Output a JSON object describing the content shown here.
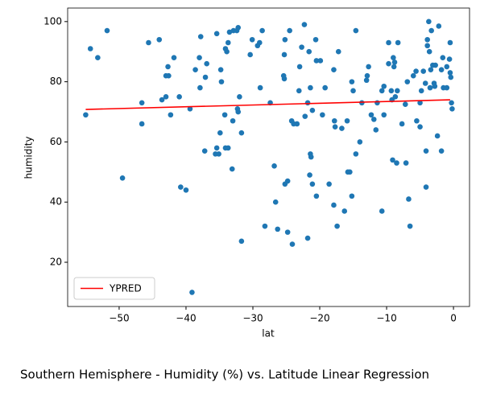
{
  "chart_data": {
    "type": "scatter",
    "title": "Southern Hemisphere - Humidity (%) vs. Latitude Linear Regression",
    "xlabel": "lat",
    "ylabel": "humidity",
    "color": "#1f77b4",
    "x": [
      -55,
      -54.3,
      -53.2,
      -51.8,
      -49.5,
      -46.6,
      -46.6,
      -45.6,
      -44,
      -43.6,
      -43,
      -42.6,
      -42.7,
      -43,
      -42.3,
      -41.8,
      -40.8,
      -40,
      -41,
      -39.1,
      -39.4,
      -38.6,
      -38,
      -37.8,
      -37.9,
      -37.1,
      -36.9,
      -37.2,
      -35.6,
      -35.4,
      -35.1,
      -35.4,
      -34.9,
      -34.7,
      -34.8,
      -34.1,
      -34.2,
      -34.1,
      -33.7,
      -33.5,
      -33.7,
      -33.9,
      -33.1,
      -33,
      -32.9,
      -32.4,
      -32.2,
      -32,
      -32.3,
      -32.2,
      -31.7,
      -31.7,
      -30.4,
      -30.1,
      -29.3,
      -29,
      -28.9,
      -28.6,
      -28.2,
      -27.4,
      -26.8,
      -26.6,
      -26.3,
      -25.4,
      -25.3,
      -25.2,
      -25.3,
      -25.2,
      -24.8,
      -24.8,
      -24.5,
      -24.2,
      -24.1,
      -23.9,
      -23.4,
      -23.1,
      -23,
      -22.7,
      -22.3,
      -22.2,
      -21.8,
      -21.8,
      -21.6,
      -21.4,
      -21.5,
      -21.4,
      -21.3,
      -21.1,
      -21.1,
      -20.6,
      -20.5,
      -20.5,
      -19.9,
      -19.6,
      -19.2,
      -18.6,
      -17.9,
      -17.9,
      -17.8,
      -17.7,
      -17.2,
      -17.4,
      -16.7,
      -16.3,
      -15.8,
      -15.9,
      -15.5,
      -15.2,
      -15.2,
      -15,
      -14.6,
      -14.6,
      -14,
      -13.7,
      -13,
      -12.9,
      -12.7,
      -12.3,
      -11.9,
      -11.6,
      -11.4,
      -10.7,
      -10.7,
      -10.4,
      -10.4,
      -9.7,
      -9.7,
      -9.3,
      -9.2,
      -9.1,
      -9,
      -8.9,
      -8.8,
      -8.7,
      -8.4,
      -8.3,
      -8.5,
      -7.7,
      -7.2,
      -7.1,
      -6.9,
      -6.7,
      -6.5,
      -6,
      -5.6,
      -5.5,
      -5,
      -5,
      -4.5,
      -4.1,
      -4.1,
      -3.9,
      -3.9,
      -3.7,
      -3.6,
      -3.5,
      -3.4,
      -3.1,
      -3.3,
      -2.9,
      -2.8,
      -2.7,
      -2.4,
      -2.2,
      -1.8,
      -1.8,
      -1.6,
      -1.5,
      -1,
      -0.6,
      -0.5,
      -0.4,
      -0.5,
      -0.3,
      -0.2,
      -1,
      -4.2,
      -4.8
    ],
    "values": [
      69,
      91,
      88,
      97,
      48,
      73,
      66,
      93,
      94,
      74,
      82,
      82,
      85,
      75,
      69,
      88,
      45,
      44,
      75,
      10,
      71,
      84,
      88,
      95,
      78,
      81.5,
      86,
      57,
      56,
      58,
      56,
      96,
      63,
      80,
      84,
      91,
      69,
      58,
      58,
      96.5,
      93,
      90,
      51,
      67,
      97,
      97,
      98,
      75,
      71,
      70,
      63,
      27,
      89,
      94,
      92,
      93,
      78,
      97,
      32,
      73,
      52,
      40,
      31,
      82,
      81,
      94,
      89,
      46,
      47,
      30,
      97,
      67,
      26,
      66,
      66,
      77,
      85,
      91.5,
      99,
      68.5,
      73,
      28,
      90,
      78,
      49,
      56,
      55,
      70.5,
      46,
      94,
      87,
      42,
      87,
      69,
      78,
      46,
      84,
      39,
      67,
      65,
      90,
      32,
      64.5,
      37,
      50,
      67,
      50,
      80,
      42,
      77,
      97,
      56,
      60,
      73,
      80.5,
      82,
      85,
      69,
      67.5,
      64,
      73,
      77,
      37,
      69,
      78.5,
      93,
      86,
      77,
      74,
      54,
      88,
      85,
      86.5,
      75,
      77,
      93,
      53,
      66,
      72.5,
      53,
      80,
      41,
      32,
      82,
      83.5,
      67,
      73,
      65,
      83.5,
      45,
      57,
      94,
      92,
      100,
      90,
      78,
      84,
      85.5,
      97,
      79.5,
      78.5,
      85.5,
      62,
      98.5,
      57,
      84,
      88,
      78,
      78,
      87.5,
      83,
      81.5,
      93,
      73,
      71,
      85,
      79.5,
      77
    ],
    "series": [
      {
        "name": "YPRED",
        "type": "line",
        "color": "#ff0000",
        "x": [
          -55,
          -0.5
        ],
        "values": [
          70.8,
          74.0
        ]
      }
    ],
    "legend": "lower left",
    "xlim": [
      -57.7,
      2.4
    ],
    "ylim": [
      5.3,
      104.5
    ],
    "xticks": [
      {
        "value": -50,
        "label": "−50"
      },
      {
        "value": -40,
        "label": "−40"
      },
      {
        "value": -30,
        "label": "−30"
      },
      {
        "value": -20,
        "label": "−20"
      },
      {
        "value": -10,
        "label": "−10"
      },
      0
    ],
    "yticks": [
      20,
      40,
      60,
      80,
      100
    ]
  }
}
